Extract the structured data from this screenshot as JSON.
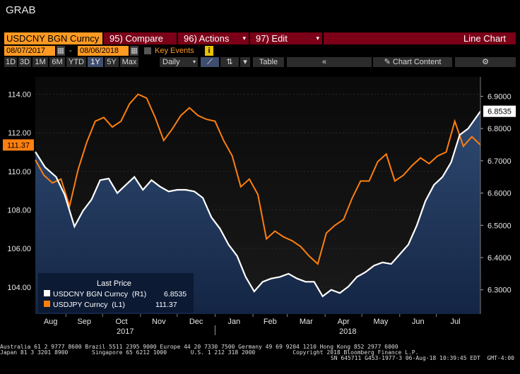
{
  "app_title": "GRAB",
  "toolbar": {
    "ticker": "USDCNY BGN Curncy",
    "compare": "95) Compare",
    "actions": "96) Actions",
    "edit": "97) Edit",
    "chart_type": "Line Chart",
    "start_date": "08/07/2017",
    "end_date": "08/06/2018",
    "date_sep": "-",
    "key_events": "Key Events",
    "periods": [
      "1D",
      "3D",
      "1M",
      "6M",
      "YTD",
      "1Y",
      "5Y",
      "Max"
    ],
    "active_period": "1Y",
    "frequency": "Daily",
    "table": "Table",
    "chart_content": "Chart Content"
  },
  "legend": {
    "title": "Last Price",
    "items": [
      {
        "label": "USDCNY BGN Curncy  (R1)",
        "value": "6.8535",
        "color": "#ffffff"
      },
      {
        "label": "USDJPY Curncy  (L1)",
        "value": "111.37",
        "color": "#ff7f0e"
      }
    ]
  },
  "footer": {
    "line1": "Australia 61 2 9777 8600 Brazil 5511 2395 9000 Europe 44 20 7330 7500 Germany 49 69 9204 1210 Hong Kong 852 2977 6000",
    "line2": "Japan 81 3 3201 8900       Singapore 65 6212 1000       U.S. 1 212 318 2000           Copyright 2018 Bloomberg Finance L.P.",
    "line3": "SN 645711 G453-1977-3 06-Aug-18 10:39:45 EDT  GMT-4:00"
  },
  "chart_data": {
    "type": "line",
    "x_range": [
      "2017-08-07",
      "2018-08-06"
    ],
    "month_labels": [
      "Aug",
      "Sep",
      "Oct",
      "Nov",
      "Dec",
      "Jan",
      "Feb",
      "Mar",
      "Apr",
      "May",
      "Jun",
      "Jul"
    ],
    "year_labels": [
      "2017",
      "2018"
    ],
    "left_axis": {
      "ticks": [
        "104.00",
        "106.00",
        "108.00",
        "110.00",
        "112.00",
        "114.00"
      ],
      "range": [
        102.6,
        114.9
      ]
    },
    "right_axis": {
      "ticks": [
        "6.3000",
        "6.4000",
        "6.5000",
        "6.6000",
        "6.7000",
        "6.8000",
        "6.9000"
      ],
      "range": [
        6.225,
        6.96
      ]
    },
    "last_values": {
      "USDCNY": "6.8535",
      "USDJPY": "111.37"
    },
    "series": [
      {
        "name": "USDCNY BGN Curncy",
        "axis": "right",
        "color": "#ffffff",
        "fill": true,
        "points": [
          [
            "2017-08-07",
            6.728
          ],
          [
            "2017-08-15",
            6.68
          ],
          [
            "2017-08-24",
            6.65
          ],
          [
            "2017-08-31",
            6.595
          ],
          [
            "2017-09-08",
            6.496
          ],
          [
            "2017-09-15",
            6.545
          ],
          [
            "2017-09-22",
            6.58
          ],
          [
            "2017-09-29",
            6.64
          ],
          [
            "2017-10-06",
            6.645
          ],
          [
            "2017-10-13",
            6.6
          ],
          [
            "2017-10-20",
            6.625
          ],
          [
            "2017-10-27",
            6.65
          ],
          [
            "2017-11-03",
            6.61
          ],
          [
            "2017-11-10",
            6.64
          ],
          [
            "2017-11-17",
            6.62
          ],
          [
            "2017-11-24",
            6.605
          ],
          [
            "2017-12-01",
            6.61
          ],
          [
            "2017-12-08",
            6.61
          ],
          [
            "2017-12-15",
            6.605
          ],
          [
            "2017-12-22",
            6.585
          ],
          [
            "2017-12-29",
            6.525
          ],
          [
            "2018-01-05",
            6.49
          ],
          [
            "2018-01-12",
            6.44
          ],
          [
            "2018-01-19",
            6.405
          ],
          [
            "2018-01-26",
            6.34
          ],
          [
            "2018-02-02",
            6.295
          ],
          [
            "2018-02-09",
            6.325
          ],
          [
            "2018-02-16",
            6.335
          ],
          [
            "2018-02-23",
            6.34
          ],
          [
            "2018-03-02",
            6.35
          ],
          [
            "2018-03-09",
            6.335
          ],
          [
            "2018-03-16",
            6.325
          ],
          [
            "2018-03-23",
            6.325
          ],
          [
            "2018-03-30",
            6.28
          ],
          [
            "2018-04-06",
            6.3
          ],
          [
            "2018-04-13",
            6.29
          ],
          [
            "2018-04-20",
            6.31
          ],
          [
            "2018-04-27",
            6.34
          ],
          [
            "2018-05-04",
            6.355
          ],
          [
            "2018-05-11",
            6.375
          ],
          [
            "2018-05-18",
            6.385
          ],
          [
            "2018-05-25",
            6.38
          ],
          [
            "2018-06-01",
            6.41
          ],
          [
            "2018-06-08",
            6.44
          ],
          [
            "2018-06-15",
            6.5
          ],
          [
            "2018-06-22",
            6.575
          ],
          [
            "2018-06-29",
            6.625
          ],
          [
            "2018-07-06",
            6.65
          ],
          [
            "2018-07-13",
            6.695
          ],
          [
            "2018-07-20",
            6.78
          ],
          [
            "2018-07-27",
            6.8
          ],
          [
            "2018-08-06",
            6.8535
          ]
        ]
      },
      {
        "name": "USDJPY Curncy",
        "axis": "left",
        "color": "#ff7f0e",
        "fill": false,
        "points": [
          [
            "2017-08-07",
            110.6
          ],
          [
            "2017-08-14",
            109.8
          ],
          [
            "2017-08-21",
            109.4
          ],
          [
            "2017-08-28",
            109.6
          ],
          [
            "2017-09-04",
            108.2
          ],
          [
            "2017-09-11",
            110.1
          ],
          [
            "2017-09-18",
            111.5
          ],
          [
            "2017-09-25",
            112.6
          ],
          [
            "2017-10-02",
            112.8
          ],
          [
            "2017-10-09",
            112.3
          ],
          [
            "2017-10-16",
            112.6
          ],
          [
            "2017-10-23",
            113.5
          ],
          [
            "2017-10-30",
            114.0
          ],
          [
            "2017-11-06",
            113.8
          ],
          [
            "2017-11-13",
            112.8
          ],
          [
            "2017-11-20",
            111.6
          ],
          [
            "2017-11-27",
            112.2
          ],
          [
            "2017-12-04",
            112.9
          ],
          [
            "2017-12-11",
            113.3
          ],
          [
            "2017-12-18",
            112.9
          ],
          [
            "2017-12-25",
            112.7
          ],
          [
            "2018-01-01",
            112.6
          ],
          [
            "2018-01-08",
            111.6
          ],
          [
            "2018-01-15",
            110.8
          ],
          [
            "2018-01-22",
            109.2
          ],
          [
            "2018-01-29",
            109.6
          ],
          [
            "2018-02-05",
            108.8
          ],
          [
            "2018-02-12",
            106.5
          ],
          [
            "2018-02-19",
            106.9
          ],
          [
            "2018-02-26",
            106.6
          ],
          [
            "2018-03-05",
            106.4
          ],
          [
            "2018-03-12",
            106.1
          ],
          [
            "2018-03-19",
            105.6
          ],
          [
            "2018-03-26",
            105.2
          ],
          [
            "2018-04-02",
            106.8
          ],
          [
            "2018-04-09",
            107.2
          ],
          [
            "2018-04-16",
            107.5
          ],
          [
            "2018-04-23",
            108.6
          ],
          [
            "2018-04-30",
            109.5
          ],
          [
            "2018-05-07",
            109.5
          ],
          [
            "2018-05-14",
            110.5
          ],
          [
            "2018-05-21",
            110.9
          ],
          [
            "2018-05-28",
            109.5
          ],
          [
            "2018-06-04",
            109.8
          ],
          [
            "2018-06-11",
            110.3
          ],
          [
            "2018-06-18",
            110.7
          ],
          [
            "2018-06-25",
            110.4
          ],
          [
            "2018-07-02",
            110.8
          ],
          [
            "2018-07-09",
            111.0
          ],
          [
            "2018-07-16",
            112.6
          ],
          [
            "2018-07-23",
            111.3
          ],
          [
            "2018-07-30",
            111.8
          ],
          [
            "2018-08-06",
            111.37
          ]
        ]
      }
    ]
  }
}
